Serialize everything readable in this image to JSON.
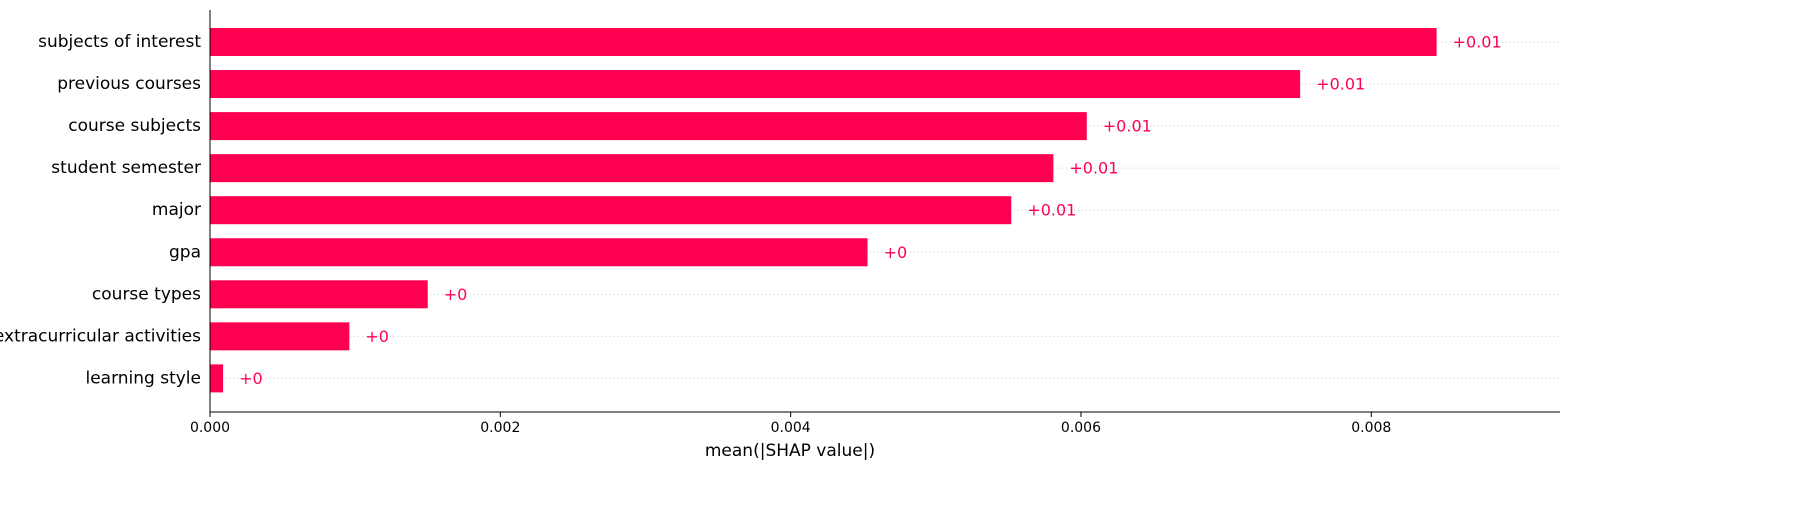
{
  "chart_data": {
    "type": "bar",
    "orientation": "horizontal",
    "categories": [
      "subjects of interest",
      "previous courses",
      "course subjects",
      "student semester",
      "major",
      "gpa",
      "course types",
      "extracurricular activities",
      "learning style"
    ],
    "values": [
      0.00845,
      0.00751,
      0.00604,
      0.00581,
      0.00552,
      0.00453,
      0.0015,
      0.00096,
      9e-05
    ],
    "value_labels": [
      "+0.01",
      "+0.01",
      "+0.01",
      "+0.01",
      "+0.01",
      "+0",
      "+0",
      "+0",
      "+0"
    ],
    "title": "",
    "xlabel": "mean(|SHAP value|)",
    "ylabel": "",
    "xlim": [
      0,
      0.0093
    ],
    "xticks": [
      0,
      0.002,
      0.004,
      0.006,
      0.008
    ],
    "xtick_labels": [
      "0.000",
      "0.002",
      "0.004",
      "0.006",
      "0.008"
    ],
    "grid": "horizontal dotted guide lines per row",
    "legend": "none",
    "colors": {
      "bar": "#ff0051",
      "value_label": "#ff0051",
      "axis": "#000000",
      "guide": "#cccccc"
    }
  }
}
